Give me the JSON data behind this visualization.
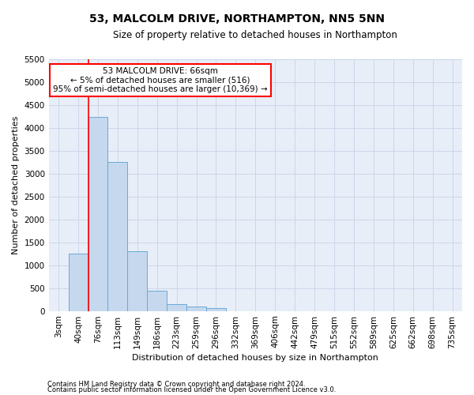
{
  "title": "53, MALCOLM DRIVE, NORTHAMPTON, NN5 5NN",
  "subtitle": "Size of property relative to detached houses in Northampton",
  "xlabel": "Distribution of detached houses by size in Northampton",
  "ylabel": "Number of detached properties",
  "footnote1": "Contains HM Land Registry data © Crown copyright and database right 2024.",
  "footnote2": "Contains public sector information licensed under the Open Government Licence v3.0.",
  "categories": [
    "3sqm",
    "40sqm",
    "76sqm",
    "113sqm",
    "149sqm",
    "186sqm",
    "223sqm",
    "259sqm",
    "296sqm",
    "332sqm",
    "369sqm",
    "406sqm",
    "442sqm",
    "479sqm",
    "515sqm",
    "552sqm",
    "589sqm",
    "625sqm",
    "662sqm",
    "698sqm",
    "735sqm"
  ],
  "values": [
    0,
    1250,
    4250,
    3250,
    1300,
    450,
    150,
    100,
    60,
    0,
    0,
    0,
    0,
    0,
    0,
    0,
    0,
    0,
    0,
    0,
    0
  ],
  "bar_color": "#c5d8ee",
  "bar_edge_color": "#6aaad4",
  "grid_color": "#ccd6e8",
  "background_color": "#e8eef8",
  "annotation_box_line1": "53 MALCOLM DRIVE: 66sqm",
  "annotation_box_line2": "← 5% of detached houses are smaller (516)",
  "annotation_box_line3": "95% of semi-detached houses are larger (10,369) →",
  "annotation_box_color": "white",
  "annotation_box_edge_color": "red",
  "vline_x": 1.5,
  "vline_color": "red",
  "ylim_max": 5500,
  "yticks": [
    0,
    500,
    1000,
    1500,
    2000,
    2500,
    3000,
    3500,
    4000,
    4500,
    5000,
    5500
  ],
  "title_fontsize": 10,
  "subtitle_fontsize": 8.5,
  "axis_label_fontsize": 8,
  "tick_fontsize": 7.5,
  "annotation_fontsize": 7.5,
  "footnote_fontsize": 6
}
